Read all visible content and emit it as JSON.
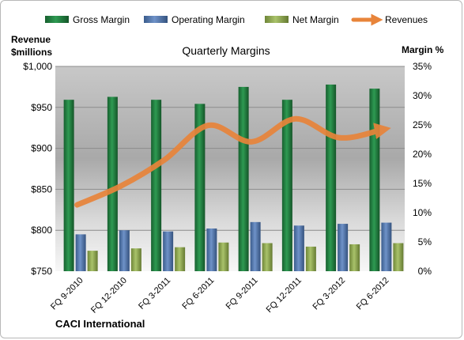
{
  "chart_data": {
    "type": "bar",
    "title": "Quarterly Margins",
    "company": "CACI International",
    "left_axis_title": [
      "Revenue",
      "$millions"
    ],
    "right_axis_title": "Margin %",
    "categories": [
      "FQ 9-2010",
      "FQ 12-2010",
      "FQ 3-2011",
      "FQ 6-2011",
      "FQ 9-2011",
      "FQ 12-2011",
      "FQ 3-2012",
      "FQ 6-2012"
    ],
    "left_axis": {
      "min": 750,
      "max": 1000,
      "ticks": [
        "$750",
        "$800",
        "$850",
        "$900",
        "$950",
        "$1,000"
      ]
    },
    "right_axis": {
      "min": 0,
      "max": 35,
      "ticks": [
        "0%",
        "5%",
        "10%",
        "15%",
        "20%",
        "25%",
        "30%",
        "35%"
      ]
    },
    "series": [
      {
        "name": "Gross Margin",
        "kind": "bar",
        "axis": "right",
        "color": "#1f7a3e",
        "values": [
          29.3,
          29.8,
          29.3,
          28.6,
          31.5,
          29.3,
          31.9,
          31.2
        ]
      },
      {
        "name": "Operating Margin",
        "kind": "bar",
        "axis": "right",
        "color": "#4a6fa5",
        "values": [
          6.3,
          7.0,
          6.8,
          7.3,
          8.4,
          7.8,
          8.1,
          8.3
        ]
      },
      {
        "name": "Net Margin",
        "kind": "bar",
        "axis": "right",
        "color": "#8aa14a",
        "values": [
          3.5,
          3.9,
          4.1,
          4.9,
          4.8,
          4.2,
          4.6,
          4.8
        ]
      },
      {
        "name": "Revenues",
        "kind": "line",
        "axis": "left",
        "color": "#e8843a",
        "values": [
          831,
          854,
          886,
          928,
          908,
          936,
          913,
          923
        ]
      }
    ],
    "grid": true,
    "legend_position": "top"
  }
}
